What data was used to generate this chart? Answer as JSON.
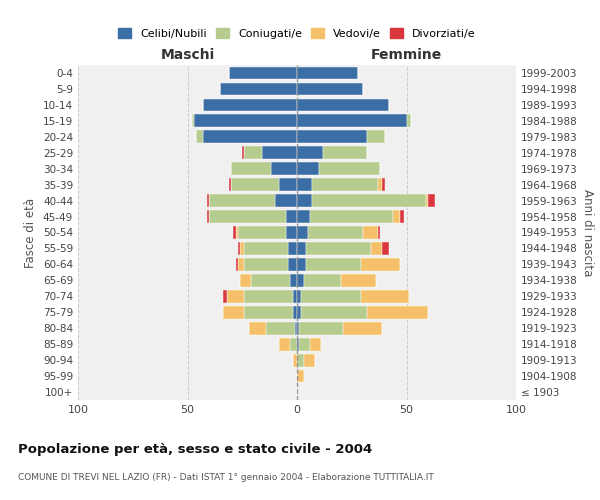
{
  "age_groups": [
    "0-4",
    "5-9",
    "10-14",
    "15-19",
    "20-24",
    "25-29",
    "30-34",
    "35-39",
    "40-44",
    "45-49",
    "50-54",
    "55-59",
    "60-64",
    "65-69",
    "70-74",
    "75-79",
    "80-84",
    "85-89",
    "90-94",
    "95-99",
    "100+"
  ],
  "birth_years": [
    "1999-2003",
    "1994-1998",
    "1989-1993",
    "1984-1988",
    "1979-1983",
    "1974-1978",
    "1969-1973",
    "1964-1968",
    "1959-1963",
    "1954-1958",
    "1949-1953",
    "1944-1948",
    "1939-1943",
    "1934-1938",
    "1929-1933",
    "1924-1928",
    "1919-1923",
    "1914-1918",
    "1909-1913",
    "1904-1908",
    "≤ 1903"
  ],
  "colors": {
    "celibi": "#3b6ea5",
    "coniugati": "#b5cc8e",
    "vedovi": "#f5c06a",
    "divorziati": "#d9363e"
  },
  "maschi": {
    "celibi": [
      31,
      35,
      43,
      47,
      43,
      16,
      12,
      8,
      10,
      5,
      5,
      4,
      4,
      3,
      2,
      2,
      1,
      0,
      0,
      0,
      0
    ],
    "coniugati": [
      0,
      0,
      0,
      1,
      3,
      8,
      18,
      22,
      30,
      35,
      22,
      20,
      20,
      18,
      22,
      22,
      13,
      3,
      0,
      0,
      0
    ],
    "vedovi": [
      0,
      0,
      0,
      0,
      0,
      0,
      0,
      0,
      0,
      0,
      1,
      2,
      3,
      5,
      8,
      10,
      8,
      5,
      2,
      0,
      0
    ],
    "divorziati": [
      0,
      0,
      0,
      0,
      0,
      1,
      0,
      1,
      1,
      1,
      1,
      1,
      1,
      0,
      2,
      0,
      0,
      0,
      0,
      0,
      0
    ]
  },
  "femmine": {
    "celibi": [
      28,
      30,
      42,
      50,
      32,
      12,
      10,
      7,
      7,
      6,
      5,
      4,
      4,
      3,
      2,
      2,
      1,
      1,
      0,
      0,
      0
    ],
    "coniugati": [
      0,
      0,
      0,
      2,
      8,
      20,
      28,
      30,
      52,
      38,
      25,
      30,
      25,
      17,
      27,
      30,
      20,
      5,
      3,
      0,
      0
    ],
    "vedovi": [
      0,
      0,
      0,
      0,
      0,
      0,
      0,
      2,
      1,
      3,
      7,
      5,
      18,
      16,
      22,
      28,
      18,
      5,
      5,
      3,
      0
    ],
    "divorziati": [
      0,
      0,
      0,
      0,
      0,
      0,
      0,
      1,
      3,
      2,
      1,
      3,
      0,
      0,
      0,
      0,
      0,
      0,
      0,
      0,
      0
    ]
  },
  "title": "Popolazione per età, sesso e stato civile - 2004",
  "subtitle": "COMUNE DI TREVI NEL LAZIO (FR) - Dati ISTAT 1° gennaio 2004 - Elaborazione TUTTITALIA.IT",
  "xlabel_maschi": "Maschi",
  "xlabel_femmine": "Femmine",
  "ylabel_left": "Fasce di età",
  "ylabel_right": "Anni di nascita",
  "xlim": 100,
  "bg_color": "#f0f0f0",
  "grid_color": "#cccccc"
}
